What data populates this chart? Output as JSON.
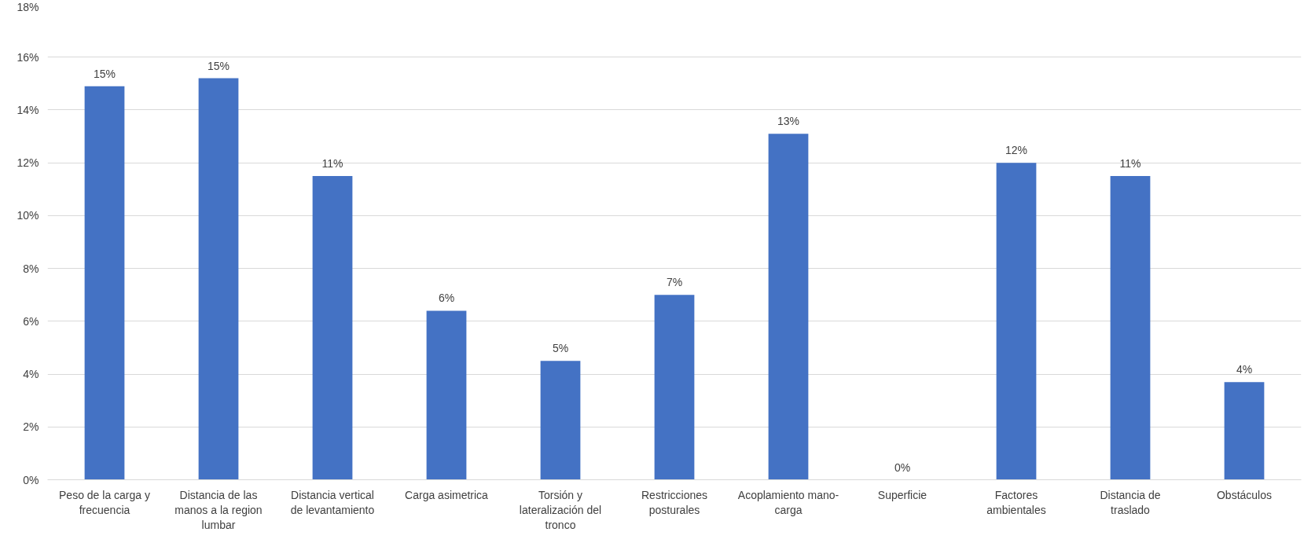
{
  "chart_data": {
    "type": "bar",
    "categories": [
      "Peso de la carga y frecuencia",
      "Distancia de las manos a la region lumbar",
      "Distancia vertical de levantamiento",
      "Carga asimetrica",
      "Torsión y lateralización del tronco",
      "Restricciones posturales",
      "Acoplamiento mano-carga",
      "Superficie",
      "Factores ambientales",
      "Distancia de traslado",
      "Obstáculos"
    ],
    "values": [
      14.9,
      15.2,
      11.5,
      6.4,
      4.5,
      7.0,
      13.1,
      0,
      12.0,
      11.5,
      3.7
    ],
    "value_labels": [
      "15%",
      "15%",
      "11%",
      "6%",
      "5%",
      "7%",
      "13%",
      "0%",
      "12%",
      "11%",
      "4%"
    ],
    "color": "#4472c4",
    "ylim": [
      0,
      18
    ],
    "yticks": [
      {
        "value": 0,
        "label": "0%"
      },
      {
        "value": 2,
        "label": "2%"
      },
      {
        "value": 4,
        "label": "4%"
      },
      {
        "value": 6,
        "label": "6%"
      },
      {
        "value": 8,
        "label": "8%"
      },
      {
        "value": 10,
        "label": "10%"
      },
      {
        "value": 12,
        "label": "12%"
      },
      {
        "value": 14,
        "label": "14%"
      },
      {
        "value": 16,
        "label": "16%"
      },
      {
        "value": 18,
        "label": "18%"
      }
    ],
    "grid": "y"
  }
}
